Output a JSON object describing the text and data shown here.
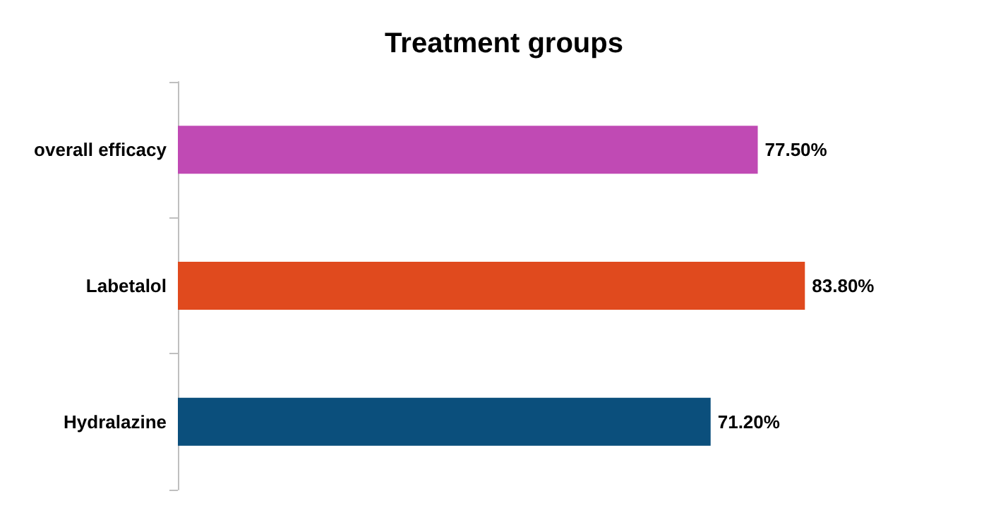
{
  "chart_data": {
    "type": "bar",
    "orientation": "horizontal",
    "title": "Treatment groups",
    "categories": [
      "overall efficacy",
      "Labetalol",
      "Hydralazine"
    ],
    "values": [
      77.5,
      83.8,
      71.2
    ],
    "colors": [
      "#c04ab4",
      "#e04a1e",
      "#0b4f7c"
    ],
    "value_labels": [
      "77.50%",
      "83.80%",
      "71.20%"
    ]
  }
}
